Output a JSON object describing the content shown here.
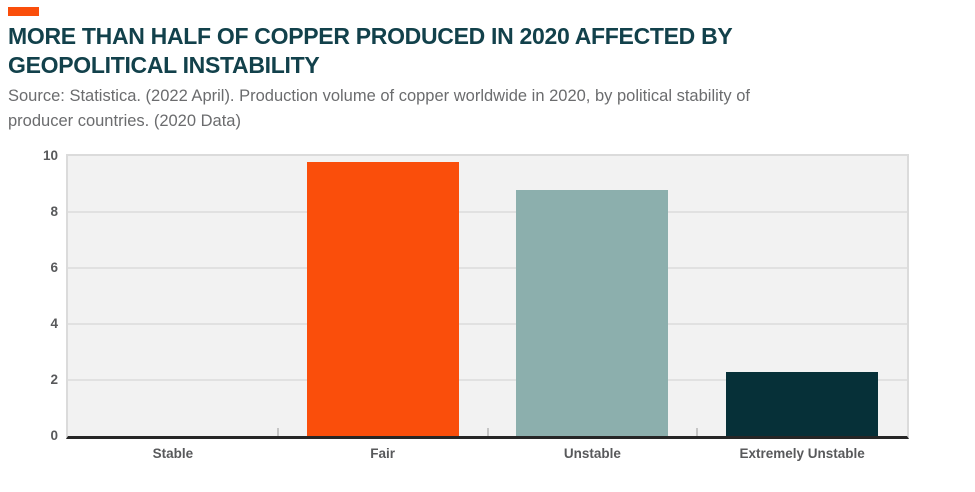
{
  "header": {
    "accent_color": "#fa4e0b",
    "title_color": "#12414b",
    "title": "MORE THAN HALF OF COPPER PRODUCED IN 2020 AFFECTED BY GEOPOLITICAL INSTABILITY",
    "title_lines": [
      "MORE THAN HALF OF COPPER PRODUCED IN 2020 AFFECTED BY",
      "GEOPOLITICAL INSTABILITY"
    ],
    "source_lines": [
      "Source: Statistica. (2022 April). Production volume of copper worldwide in 2020, by political stability of",
      "producer countries. (2020 Data)"
    ]
  },
  "chart_data": {
    "type": "bar",
    "title": "",
    "xlabel": "",
    "ylabel": "",
    "categories": [
      "Stable",
      "Fair",
      "Unstable",
      "Extremely Unstable"
    ],
    "values": [
      0,
      9.8,
      8.8,
      2.3
    ],
    "bar_colors": [
      null,
      "#fa4e0b",
      "#8cafad",
      "#063038"
    ],
    "ylim": [
      0,
      10
    ],
    "yticks": [
      0,
      2,
      4,
      6,
      8,
      10
    ],
    "grid": true,
    "legend": false,
    "plot_background": "#f2f2f2",
    "gridline_color": "#e1e1e1",
    "axis_line_color": "#262626",
    "boundary_tick_color": "#c6c6c6",
    "tick_label_color": "#58595b"
  }
}
